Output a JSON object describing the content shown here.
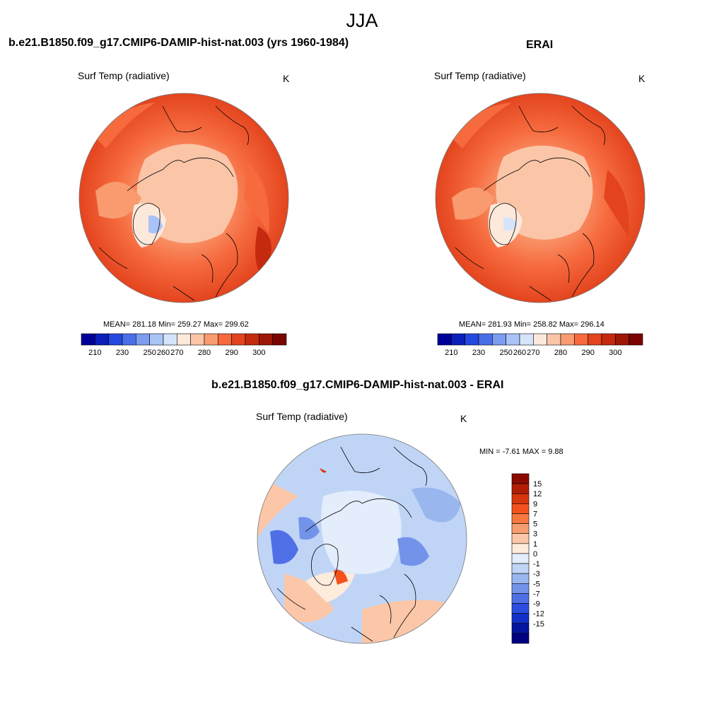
{
  "figure": {
    "title": "JJA"
  },
  "panels": [
    {
      "title": "b.e21.B1850.f09_g17.CMIP6-DAMIP-hist-nat.003 (yrs 1960-1984)",
      "variable": "Surf Temp (radiative)",
      "units": "K",
      "stats": "MEAN= 281.18  Min= 259.27  Max= 299.62"
    },
    {
      "title": "ERAI",
      "variable": "Surf Temp (radiative)",
      "units": "K",
      "stats": "MEAN= 281.93  Min= 258.82  Max= 296.14"
    },
    {
      "title": "b.e21.B1850.f09_g17.CMIP6-DAMIP-hist-nat.003 - ERAI",
      "variable": "Surf Temp (radiative)",
      "units": "K",
      "stats": "MIN =  -7.61 MAX =   9.88"
    }
  ],
  "colorbars": {
    "temperature": {
      "colors": [
        "#000099",
        "#0a1fb8",
        "#2548e0",
        "#4a6ee8",
        "#7c9cf0",
        "#a9c3f7",
        "#d5e4fb",
        "#fde9dc",
        "#fbc5a8",
        "#f99a6f",
        "#f66a3e",
        "#e3431d",
        "#c42a0d",
        "#9e1707",
        "#7a0400"
      ],
      "labels": [
        "210",
        "230",
        "250",
        "260",
        "270",
        "280",
        "290",
        "300"
      ],
      "label_after_box": [
        1,
        3,
        5,
        6,
        7,
        9,
        11,
        13
      ]
    },
    "difference": {
      "colors_top_to_bottom": [
        "#8a0a00",
        "#b01e05",
        "#d8360c",
        "#f4521d",
        "#f6783f",
        "#f79e70",
        "#fbc7a8",
        "#fdebdc",
        "#e3edfb",
        "#c0d5f6",
        "#9ab6ef",
        "#7393ea",
        "#4f6fe6",
        "#2c4ce2",
        "#1230c8",
        "#06159f",
        "#000080"
      ],
      "labels": [
        "15",
        "12",
        "9",
        "7",
        "5",
        "3",
        "1",
        "0",
        "-1",
        "-3",
        "-5",
        "-7",
        "-9",
        "-12",
        "-15"
      ]
    }
  }
}
